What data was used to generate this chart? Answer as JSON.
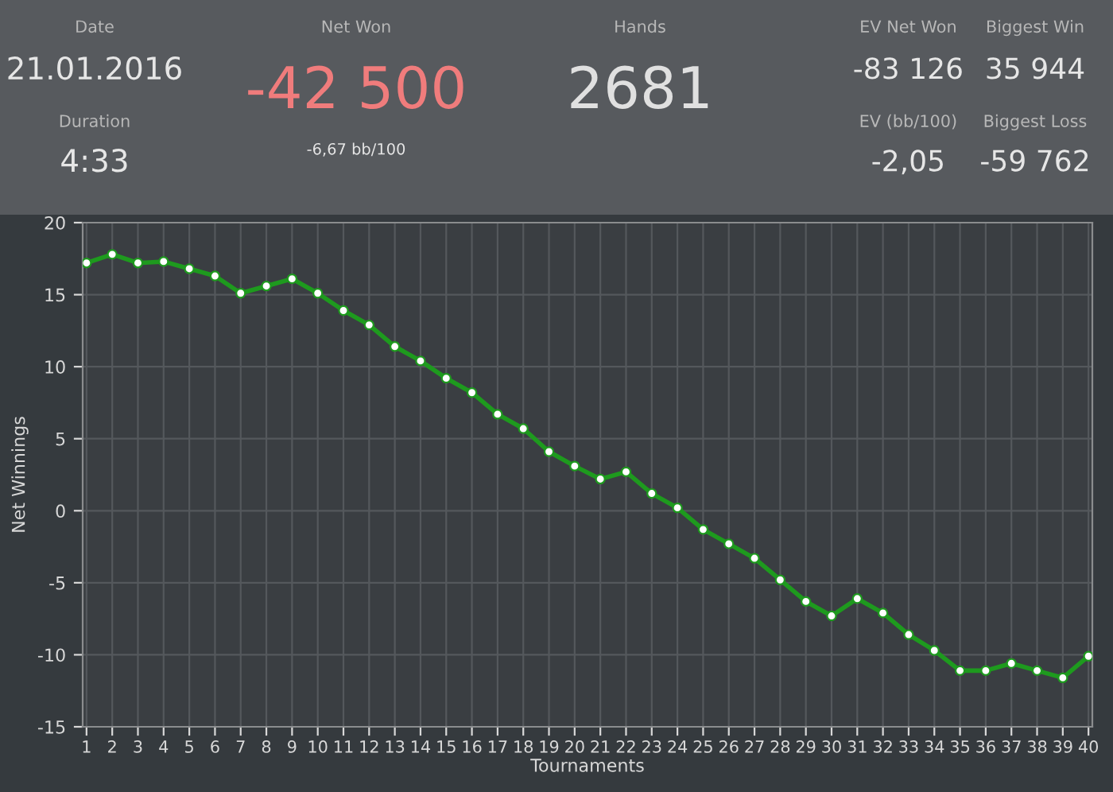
{
  "chart_data": [
    {
      "type": "other",
      "annotations": [
        "Date",
        "21.01.2016",
        "Duration",
        "4:33",
        "Net Won",
        "-42 500",
        "-6,67 bb/100",
        "Hands",
        "2681",
        "EV Net Won",
        "-83 126",
        "Biggest Win",
        "35 944",
        "EV (bb/100)",
        "-2,05",
        "Biggest Loss",
        "-59 762"
      ]
    },
    {
      "type": "line",
      "xlabel": "Tournaments",
      "ylabel": "Net Winnings",
      "x": [
        1,
        2,
        3,
        4,
        5,
        6,
        7,
        8,
        9,
        10,
        11,
        12,
        13,
        14,
        15,
        16,
        17,
        18,
        19,
        20,
        21,
        22,
        23,
        24,
        25,
        26,
        27,
        28,
        29,
        30,
        31,
        32,
        33,
        34,
        35,
        36,
        37,
        38,
        39,
        40
      ],
      "series": [
        {
          "color": "#1e9a1e",
          "values": [
            17.2,
            17.8,
            17.2,
            17.3,
            16.8,
            16.3,
            15.1,
            15.6,
            16.1,
            15.1,
            13.9,
            12.9,
            11.4,
            10.4,
            9.2,
            8.2,
            6.7,
            5.7,
            4.1,
            3.1,
            2.2,
            2.7,
            1.2,
            0.2,
            -1.3,
            -2.3,
            -3.3,
            -4.8,
            -6.3,
            -7.3,
            -6.1,
            -7.1,
            -8.6,
            -9.7,
            -11.1,
            -11.1,
            -10.6,
            -11.1,
            -11.6,
            -10.1
          ]
        }
      ],
      "xlim": [
        0.85,
        40.15
      ],
      "xticks": [
        1,
        2,
        3,
        4,
        5,
        6,
        7,
        8,
        9,
        10,
        11,
        12,
        13,
        14,
        15,
        16,
        17,
        18,
        19,
        20,
        21,
        22,
        23,
        24,
        25,
        26,
        27,
        28,
        29,
        30,
        31,
        32,
        33,
        34,
        35,
        36,
        37,
        38,
        39,
        40
      ],
      "ylim": [
        -15,
        20
      ],
      "yticks": [
        -15,
        -10,
        -5,
        0,
        5,
        10,
        15,
        20
      ],
      "grid": true,
      "marker": "circle",
      "line_style": "solid"
    }
  ]
}
